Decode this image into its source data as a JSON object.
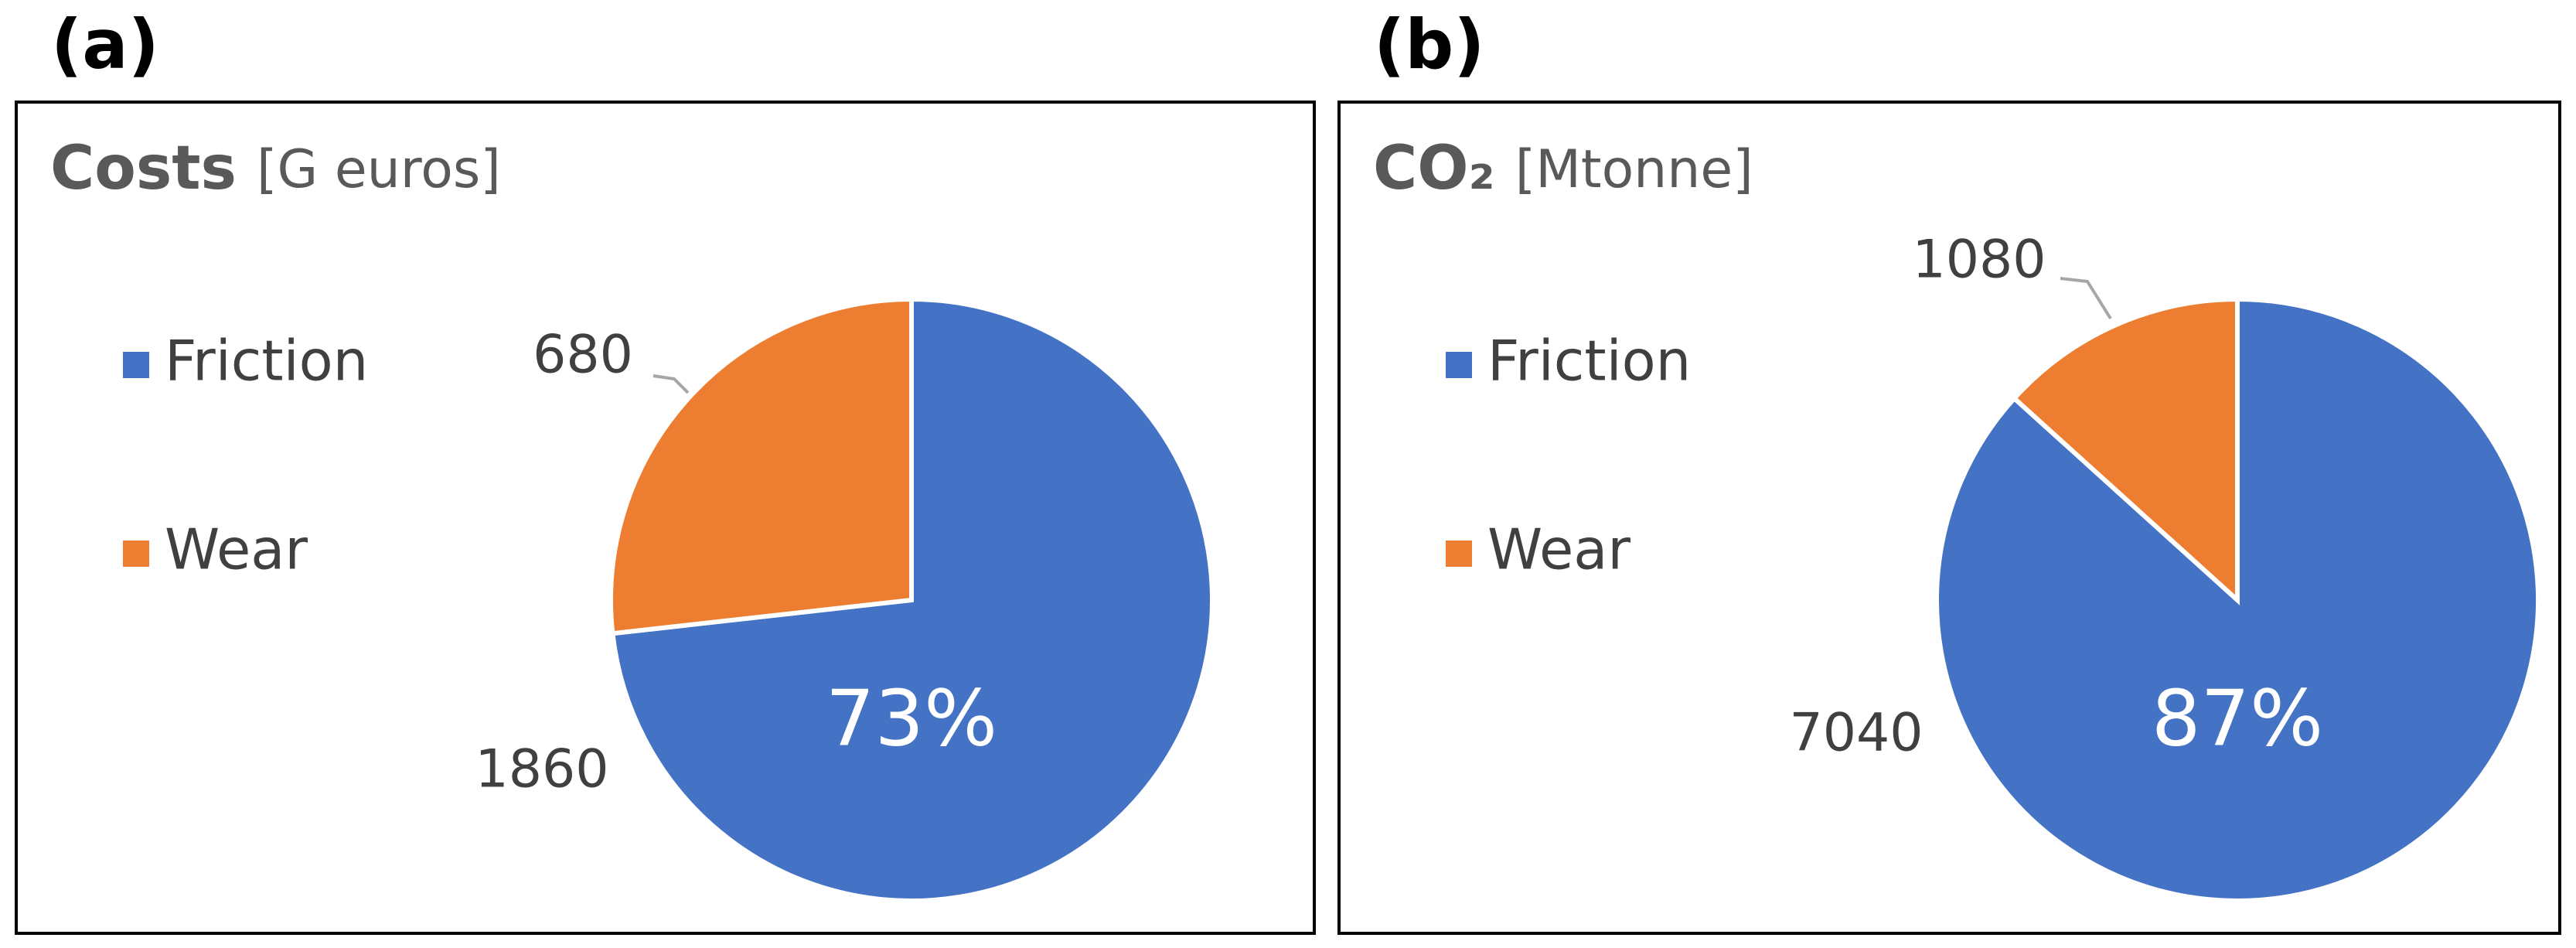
{
  "chart_data": [
    {
      "type": "pie",
      "panel": "(a)",
      "title": "Costs",
      "unit": "[G euros]",
      "categories": [
        "Friction",
        "Wear"
      ],
      "values": [
        1860,
        680
      ],
      "colors": [
        "#4472c4",
        "#ed7d31"
      ],
      "annotation": "73%",
      "legend": "left"
    },
    {
      "type": "pie",
      "panel": "(b)",
      "title": "CO₂",
      "unit": "[Mtonne]",
      "categories": [
        "Friction",
        "Wear"
      ],
      "values": [
        7040,
        1080
      ],
      "colors": [
        "#4472c4",
        "#ed7d31"
      ],
      "annotation": "87%",
      "legend": "left"
    }
  ]
}
